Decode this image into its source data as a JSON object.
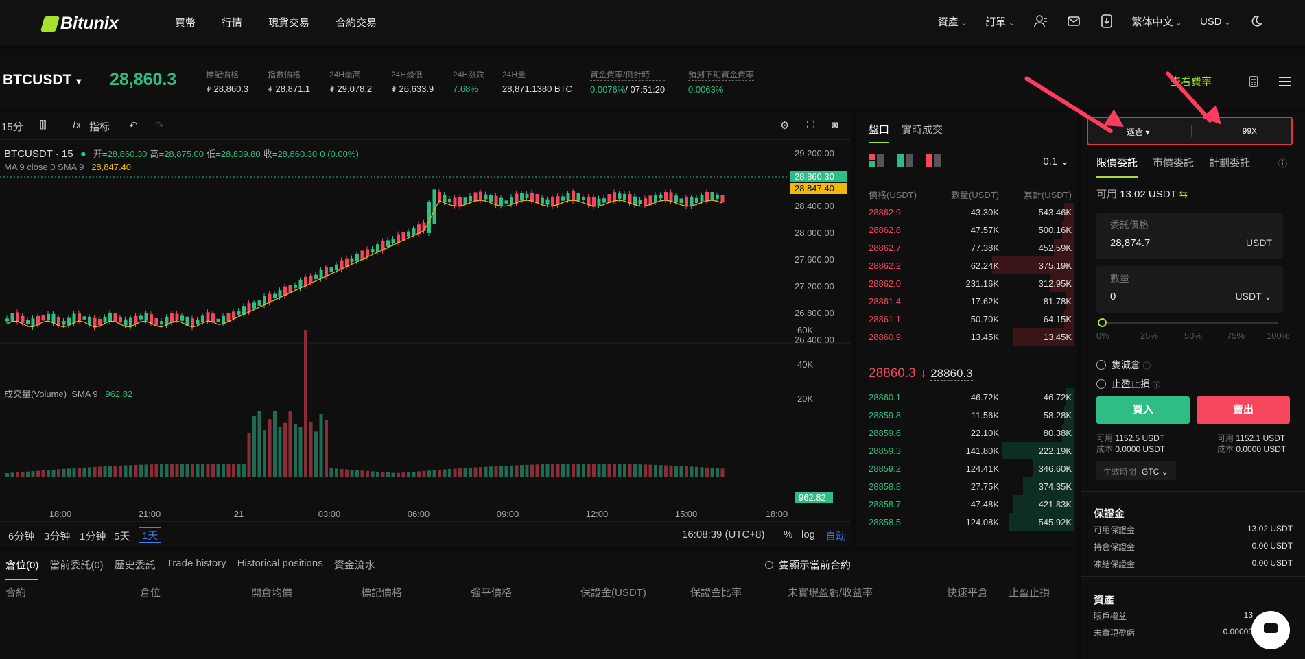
{
  "brand": "Bitunix",
  "nav": {
    "left": [
      "買幣",
      "行情",
      "現貨交易",
      "合約交易"
    ],
    "assets": "資產",
    "orders": "訂單",
    "language": "繁体中文",
    "currency": "USD"
  },
  "ticker": {
    "symbol": "BTCUSDT",
    "last_price": "28,860.3",
    "stats": [
      {
        "label": "標記價格",
        "value": "₮ 28,860.3"
      },
      {
        "label": "指數價格",
        "value": "₮ 28,871.1"
      },
      {
        "label": "24H最高",
        "value": "₮ 29,078.2"
      },
      {
        "label": "24H最低",
        "value": "₮ 26,633.9"
      },
      {
        "label": "24H漲跌",
        "value": "7.68%"
      },
      {
        "label": "24H量",
        "value": "28,871.1380 BTC"
      },
      {
        "label": "資金費率/倒計時",
        "value_rate": "0.0076%",
        "value_timer": "/ 07:51:20"
      },
      {
        "label": "預測下期資金費率",
        "value": "0.0063%"
      }
    ],
    "fee_link": "查看費率"
  },
  "chart": {
    "toolbar": {
      "interval": "15分",
      "indicators": "指标"
    },
    "legend": {
      "title": "BTCUSDT · 15",
      "open_label": "开=",
      "open": "28,860.30",
      "high_label": "高=",
      "high": "28,875.00",
      "low_label": "低=",
      "low": "28,839.80",
      "close_label": "收=",
      "close": "28,860.30",
      "change": "0 (0.00%)"
    },
    "ma_label": "MA 9 close 0 SMA 9",
    "ma_value": "28,847.40",
    "volume_label": "成交量(Volume)",
    "volume_sma_label": "SMA 9",
    "volume_value": "962.82",
    "price_ticks": [
      "29,200.00",
      "28,400.00",
      "28,000.00",
      "27,600.00",
      "27,200.00",
      "26,800.00",
      "26,400.00"
    ],
    "price_label_last": "28,860.30",
    "price_label_ma": "28,847.40",
    "volume_ticks": [
      "60K",
      "40K",
      "20K"
    ],
    "volume_label_last": "962.82",
    "time_ticks": [
      "18:00",
      "21:00",
      "21",
      "03:00",
      "06:00",
      "09:00",
      "12:00",
      "15:00",
      "18:00"
    ],
    "timeframes": [
      "6分钟",
      "3分钟",
      "1分钟",
      "5天",
      "1天"
    ],
    "active_timeframe": "1天",
    "clock": "16:08:39 (UTC+8)",
    "percent": "%",
    "log": "log",
    "auto": "自动"
  },
  "orderbook": {
    "tabs": [
      "盤口",
      "實時成交"
    ],
    "precision": "0.1",
    "headers": [
      "價格(USDT)",
      "數量(USDT)",
      "累計(USDT)"
    ],
    "asks": [
      {
        "price": "28862.9",
        "qty": "43.30K",
        "total": "543.46K",
        "depth": 0.05
      },
      {
        "price": "28862.8",
        "qty": "47.57K",
        "total": "500.16K",
        "depth": 0.06
      },
      {
        "price": "28862.7",
        "qty": "77.38K",
        "total": "452.59K",
        "depth": 0.1
      },
      {
        "price": "28862.2",
        "qty": "62.24K",
        "total": "375.19K",
        "depth": 0.4
      },
      {
        "price": "28862.0",
        "qty": "231.16K",
        "total": "312.95K",
        "depth": 0.12
      },
      {
        "price": "28861.4",
        "qty": "17.62K",
        "total": "81.78K",
        "depth": 0.04
      },
      {
        "price": "28861.1",
        "qty": "50.70K",
        "total": "64.15K",
        "depth": 0.05
      },
      {
        "price": "28860.9",
        "qty": "13.45K",
        "total": "13.45K",
        "depth": 0.3
      }
    ],
    "mid_price": "28860.3",
    "mark_price": "28860.3",
    "bids": [
      {
        "price": "28860.1",
        "qty": "46.72K",
        "total": "46.72K",
        "depth": 0.04
      },
      {
        "price": "28859.8",
        "qty": "11.56K",
        "total": "58.28K",
        "depth": 0.05
      },
      {
        "price": "28859.6",
        "qty": "22.10K",
        "total": "80.38K",
        "depth": 0.06
      },
      {
        "price": "28859.3",
        "qty": "141.80K",
        "total": "222.19K",
        "depth": 0.35
      },
      {
        "price": "28859.2",
        "qty": "124.41K",
        "total": "346.60K",
        "depth": 0.2
      },
      {
        "price": "28858.8",
        "qty": "27.75K",
        "total": "374.35K",
        "depth": 0.25
      },
      {
        "price": "28858.7",
        "qty": "47.48K",
        "total": "421.83K",
        "depth": 0.3
      },
      {
        "price": "28858.5",
        "qty": "124.08K",
        "total": "545.92K",
        "depth": 0.32
      }
    ]
  },
  "positions": {
    "tabs": [
      "倉位(0)",
      "當前委託(0)",
      "歷史委託",
      "Trade history",
      "Historical positions",
      "資金流水"
    ],
    "only_current": "隻顯示當前合約",
    "headers": [
      "合約",
      "倉位",
      "開倉均價",
      "標記價格",
      "強平價格",
      "保證金(USDT)",
      "保證金比率",
      "未實現盈虧/收益率",
      "快速平倉",
      "止盈止損"
    ]
  },
  "trade": {
    "margin_mode": "逐倉 ▾",
    "leverage": "99X",
    "tabs": [
      "限價委託",
      "市價委託",
      "計劃委託"
    ],
    "available_label": "可用",
    "available": "13.02 USDT",
    "price_field": {
      "label": "委託價格",
      "value": "28,874.7",
      "unit": "USDT"
    },
    "qty_field": {
      "label": "數量",
      "value": "0",
      "unit": "USDT ⌄"
    },
    "slider_pct": 0,
    "slider_labels": [
      "0%",
      "25%",
      "50%",
      "75%",
      "100%"
    ],
    "reduce_only": "隻減倉",
    "tp_sl": "止盈止損",
    "buy": "買入",
    "sell": "賣出",
    "buy_avail": "1152.5 USDT",
    "buy_cost": "0.0000 USDT",
    "sell_avail": "1152.1 USDT",
    "sell_cost": "0.0000 USDT",
    "avail_label": "可用",
    "cost_label": "成本",
    "tif_label": "生效時間",
    "tif_value": "GTC ⌄",
    "margin_title": "保證金",
    "margin": [
      {
        "label": "可用保證金",
        "value": "13.02 USDT"
      },
      {
        "label": "持倉保證金",
        "value": "0.00 USDT"
      },
      {
        "label": "凍結保證金",
        "value": "0.00 USDT"
      }
    ],
    "assets_title": "資產",
    "assets": [
      {
        "label": "賬戶權益",
        "value": "13"
      },
      {
        "label": "未實現盈虧",
        "value": "0.00000"
      }
    ]
  },
  "colors": {
    "up": "#2ebd85",
    "down": "#f6465d",
    "accent": "#a6e22e",
    "highlight": "#e0353f"
  }
}
